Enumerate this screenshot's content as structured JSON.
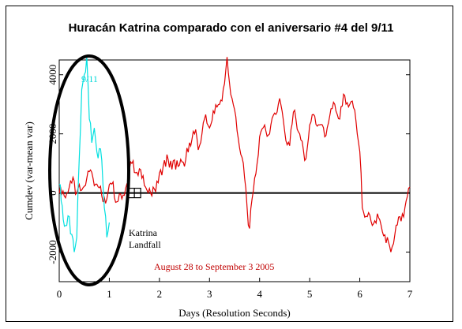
{
  "chart_data": {
    "type": "line",
    "title": "Huracán Katrina comparado con el aniversario #4 del 9/11",
    "xlabel": "Days (Resolution Seconds)",
    "ylabel": "Cumdev (var-mean var)",
    "xlim": [
      0,
      7
    ],
    "ylim": [
      -3000,
      4500
    ],
    "x_ticks": [
      "0",
      "1",
      "2",
      "3",
      "4",
      "5",
      "6",
      "7"
    ],
    "y_ticks": [
      "-2000",
      "0",
      "2000",
      "4000"
    ],
    "y_tick_values": [
      -2000,
      0,
      2000,
      4000
    ],
    "grid": false,
    "series": [
      {
        "name": "August 28 to September 3 2005",
        "color": "#e00000",
        "points": [
          [
            0,
            0
          ],
          [
            0.1,
            -100
          ],
          [
            0.2,
            200
          ],
          [
            0.3,
            400
          ],
          [
            0.35,
            0
          ],
          [
            0.45,
            100
          ],
          [
            0.55,
            500
          ],
          [
            0.65,
            700
          ],
          [
            0.75,
            300
          ],
          [
            0.85,
            -100
          ],
          [
            0.95,
            -200
          ],
          [
            1.05,
            300
          ],
          [
            1.15,
            -300
          ],
          [
            1.25,
            -200
          ],
          [
            1.35,
            300
          ],
          [
            1.45,
            1000
          ],
          [
            1.55,
            700
          ],
          [
            1.65,
            500
          ],
          [
            1.75,
            100
          ],
          [
            1.85,
            -100
          ],
          [
            1.95,
            400
          ],
          [
            2.05,
            600
          ],
          [
            2.15,
            1300
          ],
          [
            2.25,
            800
          ],
          [
            2.35,
            1100
          ],
          [
            2.5,
            900
          ],
          [
            2.6,
            1700
          ],
          [
            2.7,
            2000
          ],
          [
            2.8,
            1600
          ],
          [
            2.9,
            2500
          ],
          [
            3.0,
            2200
          ],
          [
            3.1,
            2700
          ],
          [
            3.2,
            3000
          ],
          [
            3.3,
            3700
          ],
          [
            3.35,
            4600
          ],
          [
            3.45,
            3200
          ],
          [
            3.55,
            2100
          ],
          [
            3.65,
            1200
          ],
          [
            3.75,
            -500
          ],
          [
            3.8,
            -1200
          ],
          [
            3.9,
            500
          ],
          [
            4.0,
            1900
          ],
          [
            4.1,
            2300
          ],
          [
            4.2,
            2000
          ],
          [
            4.3,
            2700
          ],
          [
            4.4,
            3200
          ],
          [
            4.5,
            2100
          ],
          [
            4.6,
            1600
          ],
          [
            4.7,
            2800
          ],
          [
            4.8,
            2000
          ],
          [
            4.9,
            1100
          ],
          [
            5.0,
            2300
          ],
          [
            5.1,
            2600
          ],
          [
            5.2,
            2300
          ],
          [
            5.3,
            1900
          ],
          [
            5.4,
            2600
          ],
          [
            5.5,
            3000
          ],
          [
            5.6,
            2500
          ],
          [
            5.7,
            3300
          ],
          [
            5.8,
            3000
          ],
          [
            5.9,
            2800
          ],
          [
            6.0,
            1400
          ],
          [
            6.05,
            -500
          ],
          [
            6.15,
            -800
          ],
          [
            6.25,
            -1100
          ],
          [
            6.35,
            -700
          ],
          [
            6.45,
            -1300
          ],
          [
            6.55,
            -1500
          ],
          [
            6.62,
            -2000
          ],
          [
            6.7,
            -1400
          ],
          [
            6.8,
            -800
          ],
          [
            6.9,
            -500
          ],
          [
            7.0,
            200
          ]
        ]
      },
      {
        "name": "9/11",
        "color": "#00e0e0",
        "points": [
          [
            0,
            300
          ],
          [
            0.08,
            -900
          ],
          [
            0.15,
            -1100
          ],
          [
            0.2,
            -800
          ],
          [
            0.25,
            -1400
          ],
          [
            0.3,
            -2000
          ],
          [
            0.35,
            -1500
          ],
          [
            0.4,
            1200
          ],
          [
            0.45,
            3500
          ],
          [
            0.5,
            4000
          ],
          [
            0.55,
            4600
          ],
          [
            0.6,
            2500
          ],
          [
            0.65,
            1700
          ],
          [
            0.7,
            2200
          ],
          [
            0.75,
            1400
          ],
          [
            0.8,
            1500
          ],
          [
            0.85,
            1100
          ],
          [
            0.9,
            -500
          ],
          [
            0.95,
            -1500
          ],
          [
            1.0,
            -1000
          ]
        ]
      }
    ],
    "annotations": {
      "nine_eleven": "9/11",
      "landfall_line1": "Katrina",
      "landfall_line2": "Landfall",
      "date_range": "August 28 to September 3 2005"
    },
    "landfall_x": 1.5
  }
}
